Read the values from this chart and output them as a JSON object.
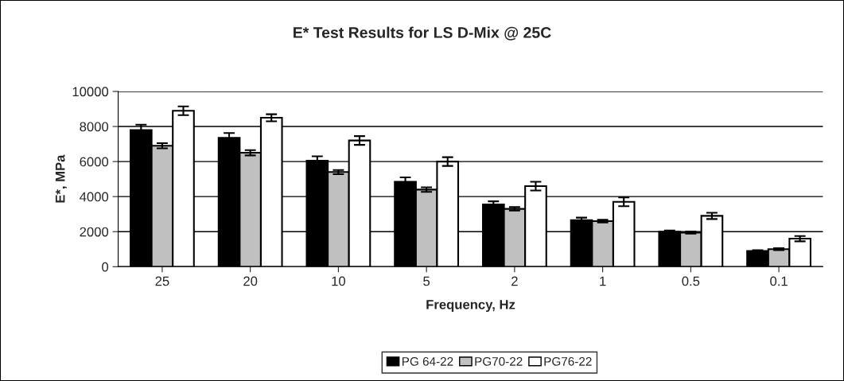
{
  "chart_data": {
    "type": "bar",
    "title": "E* Test Results for LS D-Mix @ 25C",
    "xlabel": "Frequency, Hz",
    "ylabel": "E*, MPa",
    "categories": [
      "25",
      "20",
      "10",
      "5",
      "2",
      "1",
      "0.5",
      "0.1"
    ],
    "series": [
      {
        "name": "PG 64-22",
        "color": "#000000",
        "values": [
          7800,
          7350,
          6050,
          4850,
          3550,
          2650,
          2000,
          900
        ],
        "errors": [
          300,
          280,
          250,
          250,
          180,
          150,
          60,
          40
        ]
      },
      {
        "name": "PG70-22",
        "color": "#c0c0c0",
        "values": [
          6900,
          6500,
          5400,
          4400,
          3300,
          2600,
          1950,
          1000
        ],
        "errors": [
          150,
          150,
          120,
          130,
          100,
          80,
          60,
          50
        ]
      },
      {
        "name": "PG76-22",
        "color": "#ffffff",
        "values": [
          8900,
          8500,
          7200,
          6000,
          4600,
          3700,
          2900,
          1600
        ],
        "errors": [
          250,
          200,
          250,
          250,
          250,
          250,
          180,
          150
        ]
      }
    ],
    "ylim": [
      0,
      10000
    ],
    "yticks": [
      0,
      2000,
      4000,
      6000,
      8000,
      10000
    ],
    "grid": "y",
    "legend": "bottom"
  }
}
